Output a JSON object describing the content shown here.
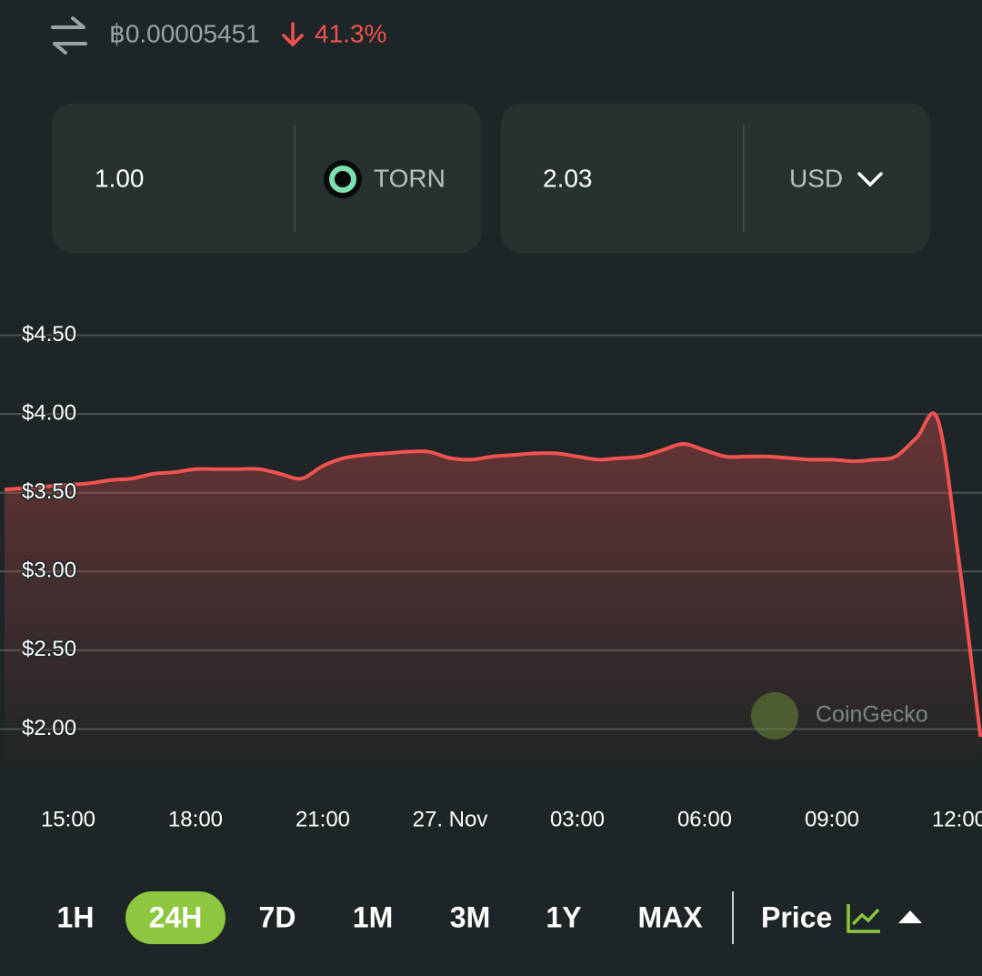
{
  "header": {
    "btc_price": "฿0.00005451",
    "change": "41.3%"
  },
  "converter": {
    "from_amount": "1.00",
    "from_currency": "TORN",
    "to_amount": "2.03",
    "to_currency": "USD"
  },
  "chart_data": {
    "type": "line",
    "color": "#f05252",
    "grid": true,
    "watermark": "CoinGecko",
    "categories": [
      null,
      null,
      null,
      "15:00",
      null,
      null,
      null,
      null,
      null,
      "18:00",
      null,
      null,
      null,
      null,
      null,
      "21:00",
      null,
      null,
      null,
      null,
      null,
      "27. Nov",
      null,
      null,
      null,
      null,
      null,
      "03:00",
      null,
      null,
      null,
      null,
      null,
      "06:00",
      null,
      null,
      null,
      null,
      null,
      "09:00",
      null,
      null,
      null,
      null,
      null,
      "12:00",
      null
    ],
    "values": [
      3.52,
      3.53,
      3.54,
      3.55,
      3.56,
      3.58,
      3.59,
      3.62,
      3.63,
      3.65,
      3.65,
      3.65,
      3.65,
      3.62,
      3.59,
      3.67,
      3.72,
      3.74,
      3.75,
      3.76,
      3.76,
      3.72,
      3.71,
      3.73,
      3.74,
      3.75,
      3.75,
      3.73,
      3.71,
      3.72,
      3.73,
      3.77,
      3.81,
      3.77,
      3.73,
      3.73,
      3.73,
      3.72,
      3.71,
      3.71,
      3.7,
      3.71,
      3.73,
      3.85,
      3.96,
      3.05,
      1.95
    ],
    "ylim": [
      1.72,
      4.72
    ],
    "yticks": [
      {
        "value": 2.0,
        "label": "$2.00"
      },
      {
        "value": 2.5,
        "label": "$2.50"
      },
      {
        "value": 3.0,
        "label": "$3.00"
      },
      {
        "value": 3.5,
        "label": "$3.50"
      },
      {
        "value": 4.0,
        "label": "$4.00"
      },
      {
        "value": 4.5,
        "label": "$4.50"
      }
    ]
  },
  "footer": {
    "ranges": [
      "1H",
      "24H",
      "7D",
      "1M",
      "3M",
      "1Y",
      "MAX"
    ],
    "selected": 1,
    "metric": "Price"
  }
}
